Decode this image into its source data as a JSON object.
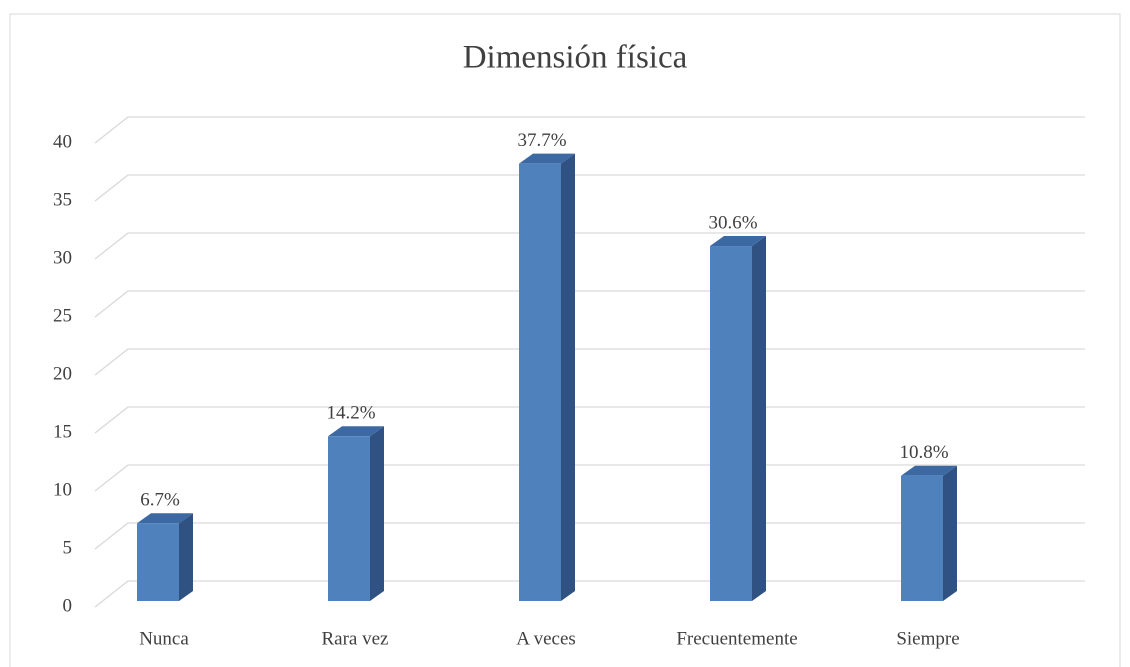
{
  "chart_data": {
    "type": "bar3d",
    "title": "Dimensión física",
    "categories": [
      "Nunca",
      "Rara vez",
      "A veces",
      "Frecuentemente",
      "Siempre"
    ],
    "values": [
      6.7,
      14.2,
      37.7,
      30.6,
      10.8
    ],
    "value_labels": [
      "6.7%",
      "14.2%",
      "37.7%",
      "30.6%",
      "10.8%"
    ],
    "color": "#4f81bd",
    "ylim": [
      0,
      40
    ],
    "yticks": [
      0,
      5,
      10,
      15,
      20,
      25,
      30,
      35,
      40
    ],
    "grid": true
  }
}
